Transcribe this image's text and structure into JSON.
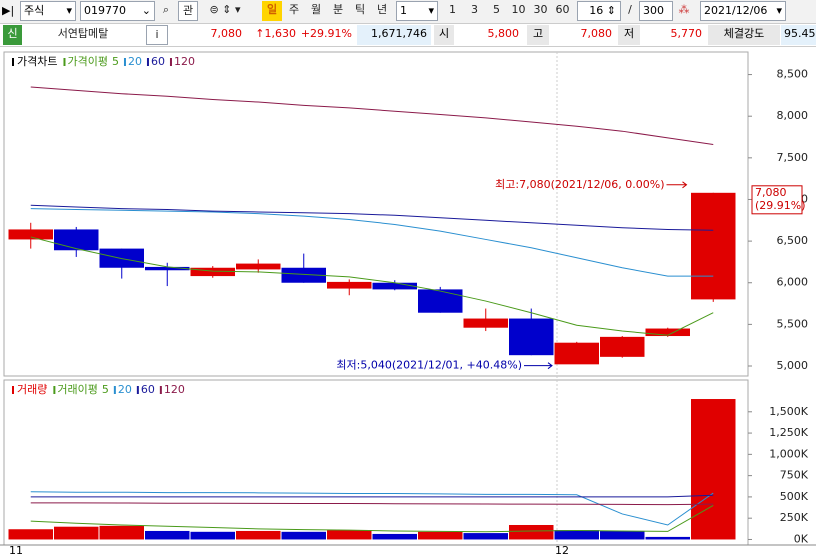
{
  "toolbar": {
    "market": "주식",
    "code": "019770",
    "gwan": "관",
    "periods": [
      "일",
      "주",
      "월",
      "분",
      "틱",
      "년"
    ],
    "interval": "1",
    "minutes": [
      "1",
      "3",
      "5",
      "10",
      "30",
      "60"
    ],
    "count": "16",
    "slash": "/",
    "total": "300",
    "date": "2021/12/06"
  },
  "quote": {
    "badge": "신",
    "name": "서연탑메탈",
    "info": "i",
    "price": "7,080",
    "change": "↑1,630",
    "rate": "+29.91%",
    "volume": "1,671,746",
    "open_label": "시",
    "open": "5,800",
    "high_label": "고",
    "high": "7,080",
    "low_label": "저",
    "low": "5,770",
    "strength_label": "체결강도",
    "strength": "95.45"
  },
  "chart_data": [
    {
      "type": "candlestick",
      "legend_title": "가격차트",
      "ma_title": "가격이평",
      "categories": [
        "11",
        null,
        null,
        null,
        null,
        null,
        null,
        null,
        null,
        null,
        null,
        null,
        "12",
        null,
        null,
        null
      ],
      "open": [
        6520,
        6640,
        6410,
        6190,
        6080,
        6160,
        6180,
        5930,
        6000,
        5920,
        5460,
        5570,
        5020,
        5110,
        5360,
        5800
      ],
      "high": [
        6720,
        6670,
        6410,
        6240,
        6200,
        6280,
        6350,
        6040,
        6030,
        5950,
        5690,
        5690,
        5290,
        5360,
        5460,
        7080
      ],
      "low": [
        6410,
        6310,
        6050,
        5960,
        6060,
        6120,
        6000,
        5850,
        5910,
        5640,
        5420,
        5130,
        5040,
        5100,
        5350,
        5770
      ],
      "close": [
        6640,
        6390,
        6180,
        6150,
        6180,
        6230,
        6000,
        6010,
        5920,
        5640,
        5570,
        5130,
        5280,
        5350,
        5450,
        7080
      ],
      "up_color": "#e00000",
      "down_color": "#0000cc",
      "series": [
        {
          "name": "5",
          "color": "#4a9a1a",
          "values": [
            6550,
            6410,
            6290,
            6190,
            6140,
            6130,
            6100,
            6070,
            6000,
            5900,
            5780,
            5640,
            5490,
            5420,
            5370,
            5640
          ]
        },
        {
          "name": "20",
          "color": "#2a8fd0",
          "values": [
            6890,
            6880,
            6870,
            6860,
            6850,
            6830,
            6800,
            6760,
            6700,
            6620,
            6520,
            6420,
            6300,
            6180,
            6080,
            6080
          ]
        },
        {
          "name": "60",
          "color": "#1a1a9a",
          "values": [
            6930,
            6910,
            6890,
            6880,
            6860,
            6850,
            6840,
            6830,
            6810,
            6780,
            6750,
            6720,
            6690,
            6660,
            6640,
            6630
          ]
        },
        {
          "name": "120",
          "color": "#8b1a4a",
          "values": [
            8350,
            8310,
            8270,
            8240,
            8200,
            8170,
            8130,
            8100,
            8060,
            8020,
            7980,
            7930,
            7880,
            7820,
            7740,
            7660
          ]
        }
      ],
      "ylim": [
        4880,
        8735
      ],
      "yticks": [
        {
          "value": 5000,
          "label": "5,000"
        },
        {
          "value": 5500,
          "label": "5,500"
        },
        {
          "value": 6000,
          "label": "6,000"
        },
        {
          "value": 6500,
          "label": "6,500"
        },
        {
          "value": 7000,
          "label": "7,000"
        },
        {
          "value": 7500,
          "label": "7,500"
        },
        {
          "value": 8000,
          "label": "8,000"
        },
        {
          "value": 8500,
          "label": "8,500"
        }
      ],
      "high_label": "최고:7,080(2021/12/06, 0.00%)",
      "low_label": "최저:5,040(2021/12/01, +40.48%)",
      "last_label": "7,080",
      "last_change": "(29.91%)"
    },
    {
      "type": "bar",
      "legend_title": "거래량",
      "ma_title": "거래이평",
      "values": [
        120000,
        150000,
        160000,
        100000,
        90000,
        100000,
        90000,
        110000,
        65000,
        90000,
        75000,
        170000,
        110000,
        100000,
        30000,
        1650000
      ],
      "up_color": "#e00000",
      "down_color": "#0000cc",
      "series": [
        {
          "name": "5",
          "color": "#4a9a1a",
          "values": [
            215000,
            190000,
            170000,
            155000,
            140000,
            125000,
            115000,
            110000,
            100000,
            95000,
            90000,
            100000,
            105000,
            100000,
            95000,
            400000
          ]
        },
        {
          "name": "20",
          "color": "#2a8fd0",
          "values": [
            560000,
            555000,
            555000,
            550000,
            550000,
            548000,
            545000,
            540000,
            540000,
            535000,
            530000,
            530000,
            525000,
            300000,
            170000,
            545000
          ]
        },
        {
          "name": "60",
          "color": "#1a1a9a",
          "values": [
            500000,
            500000,
            500000,
            500000,
            500000,
            500000,
            500000,
            500000,
            500000,
            500000,
            500000,
            500000,
            500000,
            500000,
            500000,
            520000
          ]
        },
        {
          "name": "120",
          "color": "#8b1a4a",
          "values": [
            430000,
            430000,
            428000,
            426000,
            425000,
            424000,
            423000,
            422000,
            420000,
            418000,
            416000,
            415000,
            414000,
            412000,
            410000,
            415000
          ]
        }
      ],
      "ylim": [
        -65000,
        1850000
      ],
      "yticks": [
        {
          "value": 0,
          "label": "0K"
        },
        {
          "value": 250000,
          "label": "250K"
        },
        {
          "value": 500000,
          "label": "500K"
        },
        {
          "value": 750000,
          "label": "750K"
        },
        {
          "value": 1000000,
          "label": "1,000K"
        },
        {
          "value": 1250000,
          "label": "1,250K"
        },
        {
          "value": 1500000,
          "label": "1,500K"
        }
      ]
    }
  ]
}
